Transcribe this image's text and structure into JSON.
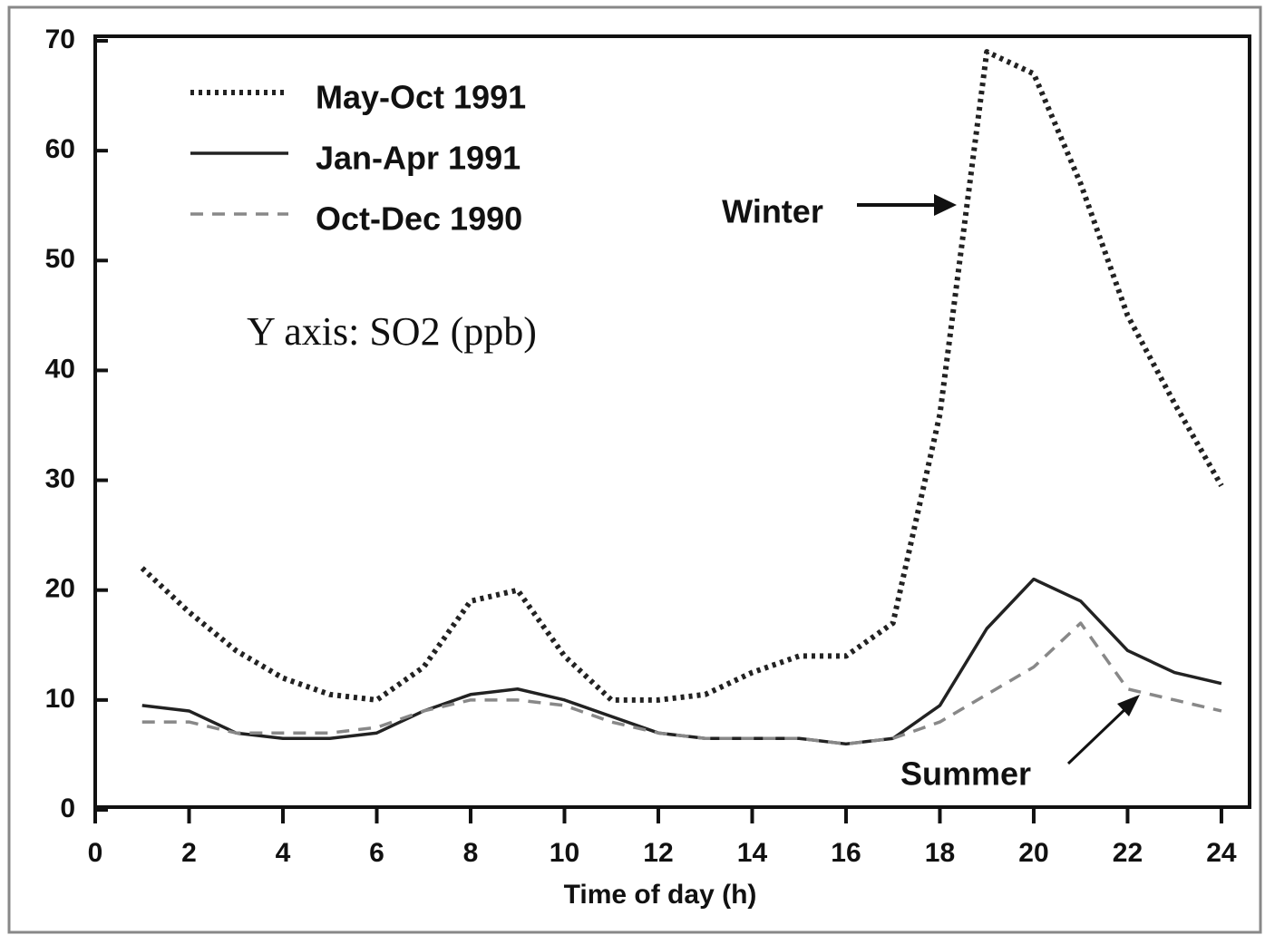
{
  "chart_data": {
    "type": "line",
    "x_label": "Time of day (h)",
    "annotations": [
      "Y axis: SO2 (ppb)",
      "Winter",
      "Summer"
    ],
    "x": [
      1,
      2,
      3,
      4,
      5,
      6,
      7,
      8,
      9,
      10,
      11,
      12,
      13,
      14,
      15,
      16,
      17,
      18,
      19,
      20,
      21,
      22,
      23,
      24
    ],
    "series": [
      {
        "name": "May-Oct 1991",
        "color": "#222222",
        "style": "dotted",
        "values": [
          22,
          18,
          14.5,
          12,
          10.5,
          10,
          13,
          19,
          20,
          14,
          10,
          10,
          10.5,
          12.5,
          14,
          14,
          17,
          36,
          69,
          67,
          57,
          45,
          37,
          29.5
        ]
      },
      {
        "name": "Jan-Apr 1991",
        "color": "#222222",
        "style": "solid",
        "values": [
          9.5,
          9,
          7,
          6.5,
          6.5,
          7,
          9,
          10.5,
          11,
          10,
          8.5,
          7,
          6.5,
          6.5,
          6.5,
          6,
          6.5,
          9.5,
          16.5,
          21,
          19,
          14.5,
          12.5,
          11.5
        ]
      },
      {
        "name": "Oct-Dec 1990",
        "color": "#888888",
        "style": "dashed",
        "values": [
          8,
          8,
          7,
          7,
          7,
          7.5,
          9,
          10,
          10,
          9.5,
          8,
          7,
          6.5,
          6.5,
          6.5,
          6,
          6.5,
          8,
          10.5,
          13,
          17,
          11,
          10,
          9
        ]
      }
    ],
    "xlim": [
      0,
      24.6
    ],
    "xticks": [
      0,
      2,
      4,
      6,
      8,
      10,
      12,
      14,
      16,
      18,
      20,
      22,
      24
    ],
    "ylim": [
      0,
      70
    ],
    "yticks": [
      0,
      10,
      20,
      30,
      40,
      50,
      60,
      70
    ]
  }
}
